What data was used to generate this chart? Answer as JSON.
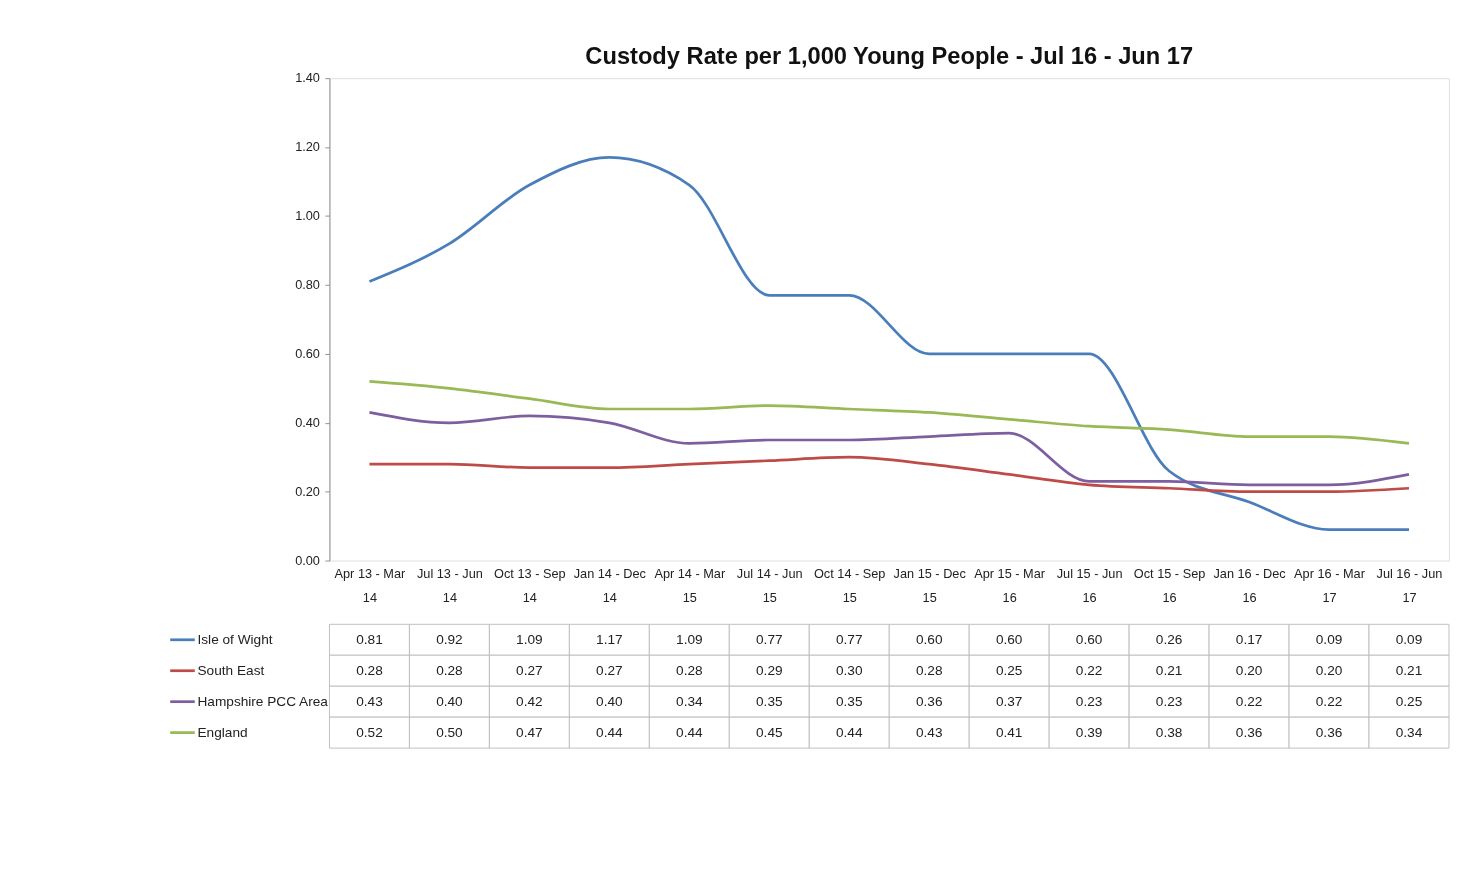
{
  "chart_data": {
    "type": "line",
    "title": "Custody Rate per 1,000 Young People - Jul 16 - Jun 17",
    "categories": [
      "Apr 13 - Mar 14",
      "Jul 13 - Jun 14",
      "Oct 13 - Sep 14",
      "Jan 14 - Dec 14",
      "Apr 14 - Mar 15",
      "Jul 14 - Jun 15",
      "Oct 14 - Sep 15",
      "Jan 15 - Dec 15",
      "Apr 15 - Mar 16",
      "Jul 15 - Jun 16",
      "Oct 15 - Sep 16",
      "Jan 16 - Dec 16",
      "Apr 16 - Mar 17",
      "Jul 16 - Jun 17"
    ],
    "series": [
      {
        "name": "Isle of Wight",
        "color": "#4a7ebb",
        "values": [
          0.81,
          0.92,
          1.09,
          1.17,
          1.09,
          0.77,
          0.77,
          0.6,
          0.6,
          0.6,
          0.26,
          0.17,
          0.09,
          0.09
        ],
        "value_labels": [
          "0.81",
          "0.92",
          "1.09",
          "1.17",
          "1.09",
          "0.77",
          "0.77",
          "0.60",
          "0.60",
          "0.60",
          "0.26",
          "0.17",
          "0.09",
          "0.09"
        ]
      },
      {
        "name": "South East",
        "color": "#be4b48",
        "values": [
          0.28,
          0.28,
          0.27,
          0.27,
          0.28,
          0.29,
          0.3,
          0.28,
          0.25,
          0.22,
          0.21,
          0.2,
          0.2,
          0.21
        ],
        "value_labels": [
          "0.28",
          "0.28",
          "0.27",
          "0.27",
          "0.28",
          "0.29",
          "0.30",
          "0.28",
          "0.25",
          "0.22",
          "0.21",
          "0.20",
          "0.20",
          "0.21"
        ]
      },
      {
        "name": "Hampshire PCC Area",
        "color": "#7d5fa0",
        "values": [
          0.43,
          0.4,
          0.42,
          0.4,
          0.34,
          0.35,
          0.35,
          0.36,
          0.37,
          0.23,
          0.23,
          0.22,
          0.22,
          0.25
        ],
        "value_labels": [
          "0.43",
          "0.40",
          "0.42",
          "0.40",
          "0.34",
          "0.35",
          "0.35",
          "0.36",
          "0.37",
          "0.23",
          "0.23",
          "0.22",
          "0.22",
          "0.25"
        ]
      },
      {
        "name": "England",
        "color": "#98b954",
        "values": [
          0.52,
          0.5,
          0.47,
          0.44,
          0.44,
          0.45,
          0.44,
          0.43,
          0.41,
          0.39,
          0.38,
          0.36,
          0.36,
          0.34
        ],
        "value_labels": [
          "0.52",
          "0.50",
          "0.47",
          "0.44",
          "0.44",
          "0.45",
          "0.44",
          "0.43",
          "0.41",
          "0.39",
          "0.38",
          "0.36",
          "0.36",
          "0.34"
        ]
      }
    ],
    "ylim": [
      0,
      1.4
    ],
    "yticks": [
      {
        "value": 0,
        "label": "0.00"
      },
      {
        "value": 0.2,
        "label": "0.20"
      },
      {
        "value": 0.4,
        "label": "0.40"
      },
      {
        "value": 0.6,
        "label": "0.60"
      },
      {
        "value": 0.8,
        "label": "0.80"
      },
      {
        "value": 1.0,
        "label": "1.00"
      },
      {
        "value": 1.2,
        "label": "1.20"
      },
      {
        "value": 1.4,
        "label": "1.40"
      }
    ],
    "grid": false,
    "legend": "bottom",
    "marker": "none",
    "line_style": "solid"
  }
}
